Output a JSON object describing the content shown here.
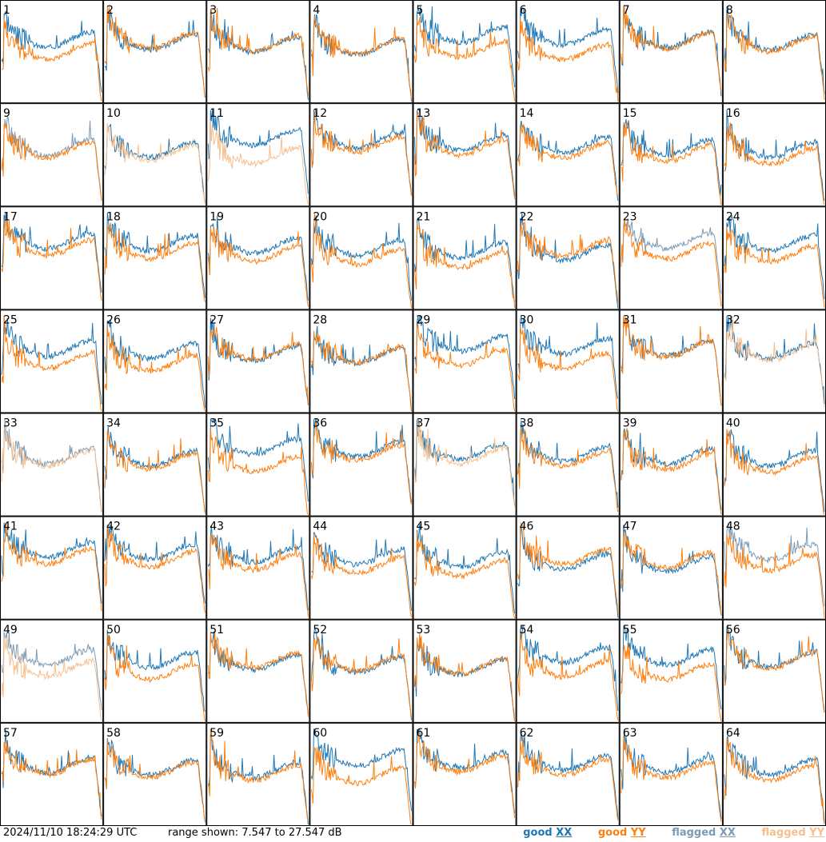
{
  "chart_data": {
    "type": "line",
    "layout": "small-multiples 8x8",
    "panel_labels": [
      "1",
      "2",
      "3",
      "4",
      "5",
      "6",
      "7",
      "8",
      "9",
      "10",
      "11",
      "12",
      "13",
      "14",
      "15",
      "16",
      "17",
      "18",
      "19",
      "20",
      "21",
      "22",
      "23",
      "24",
      "25",
      "26",
      "27",
      "28",
      "29",
      "30",
      "31",
      "32",
      "33",
      "34",
      "35",
      "36",
      "37",
      "38",
      "39",
      "40",
      "41",
      "42",
      "43",
      "44",
      "45",
      "46",
      "47",
      "48",
      "49",
      "50",
      "51",
      "52",
      "53",
      "54",
      "55",
      "56",
      "57",
      "58",
      "59",
      "60",
      "61",
      "62",
      "63",
      "64"
    ],
    "ylim_db": [
      7.547,
      27.547
    ],
    "series": [
      {
        "name": "good XX",
        "color": "#1f77b4"
      },
      {
        "name": "good YY",
        "color": "#ff7f0e"
      },
      {
        "name": "flagged XX",
        "color": "#7d9bb5"
      },
      {
        "name": "flagged YY",
        "color": "#f7bf8e"
      }
    ],
    "panel_series_state": {
      "9": {
        "xx": "flagged"
      },
      "10": {
        "yy": "flagged"
      },
      "11": {
        "yy": "flagged"
      },
      "23": {
        "xx": "flagged"
      },
      "32": {
        "yy": "flagged"
      },
      "33": {
        "xx": "flagged",
        "yy": "flagged"
      },
      "37": {
        "yy": "flagged"
      },
      "48": {
        "xx": "flagged"
      },
      "49": {
        "xx": "flagged",
        "yy": "flagged"
      }
    },
    "grid": false,
    "legend_position": "bottom-right"
  },
  "footer": {
    "timestamp": "2024/11/10 18:24:29 UTC",
    "range_text": "range shown: 7.547 to 27.547 dB",
    "legend": {
      "good_word": "good",
      "good_xx": "XX",
      "good_yy": "YY",
      "flagged_word": "flagged",
      "flagged_xx": "XX",
      "flagged_yy": "YY"
    }
  }
}
